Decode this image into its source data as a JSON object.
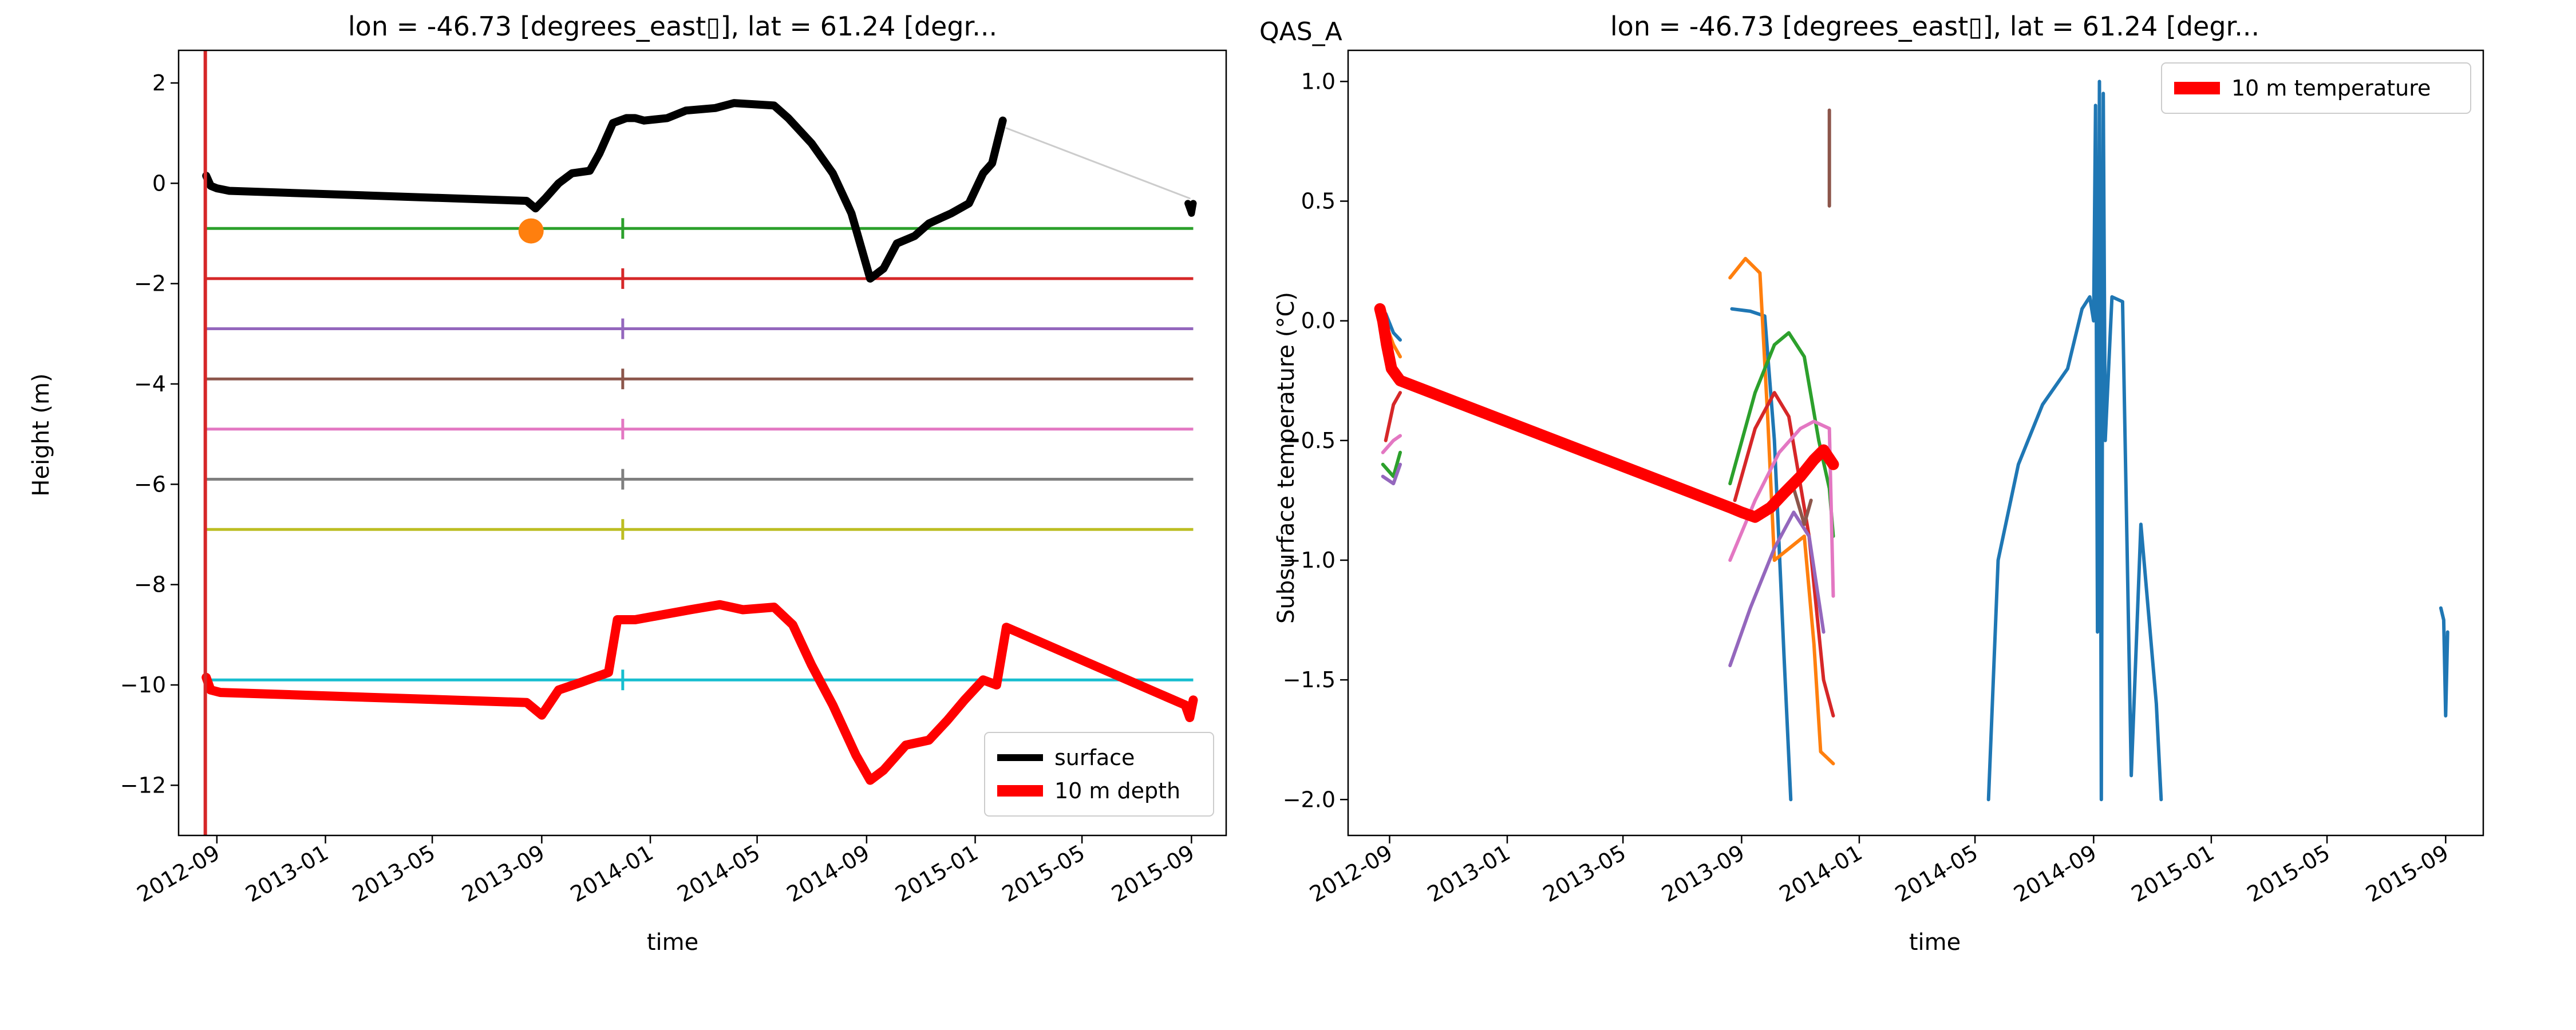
{
  "figure_title": "QAS_A",
  "colors": {
    "blue": "#1f77b4",
    "orange": "#ff7f0e",
    "green": "#2ca02c",
    "red": "#d62728",
    "purple": "#9467bd",
    "brown": "#8c564b",
    "pink": "#e377c2",
    "gray": "#7f7f7f",
    "olive": "#bcbd22",
    "cyan": "#17becf",
    "black": "#000000",
    "thick_red": "#ff0000",
    "light_gray": "#cccccc"
  },
  "chart_data": [
    {
      "type": "line",
      "title": "lon = -46.73 [degrees_east▯], lat = 61.24 [degr...",
      "xlabel": "time",
      "ylabel": "Height (m)",
      "xlim": [
        "2012-07-20",
        "2015-10-10"
      ],
      "ylim": [
        -13.0,
        2.65
      ],
      "xticks": [
        "2012-09",
        "2013-01",
        "2013-05",
        "2013-09",
        "2014-01",
        "2014-05",
        "2014-09",
        "2015-01",
        "2015-05",
        "2015-09"
      ],
      "yticks": [
        2,
        0,
        -2,
        -4,
        -6,
        -8,
        -10,
        -12
      ],
      "grid": false,
      "legend": {
        "placement": "lower-right",
        "entries": [
          {
            "label": "surface",
            "color": "#000000"
          },
          {
            "label": "10 m depth",
            "color": "#ff0000"
          }
        ]
      },
      "vline": {
        "x": "2012-08-19",
        "color": "#d62728"
      },
      "marker": {
        "x": "2013-08-20",
        "y": -0.95,
        "color": "#ff7f0e"
      },
      "surface_gap_line": [
        [
          "2012-09-01",
          -0.15
        ],
        [
          "2013-08-15",
          -0.35
        ]
      ],
      "surface_gap_line_2": [
        [
          "2015-02-05",
          1.1
        ],
        [
          "2015-08-30",
          -0.3
        ]
      ],
      "surface": [
        [
          "2012-08-20",
          0.15
        ],
        [
          "2012-08-25",
          -0.05
        ],
        [
          "2012-09-01",
          -0.1
        ],
        [
          "2012-09-15",
          -0.15
        ],
        [
          "2013-08-15",
          -0.35
        ],
        [
          "2013-08-25",
          -0.5
        ],
        [
          "2013-09-05",
          -0.3
        ],
        [
          "2013-09-20",
          0.0
        ],
        [
          "2013-10-05",
          0.2
        ],
        [
          "2013-10-25",
          0.25
        ],
        [
          "2013-11-05",
          0.6
        ],
        [
          "2013-11-20",
          1.2
        ],
        [
          "2013-12-05",
          1.3
        ],
        [
          "2013-12-15",
          1.3
        ],
        [
          "2013-12-25",
          1.25
        ],
        [
          "2014-01-20",
          1.3
        ],
        [
          "2014-02-10",
          1.45
        ],
        [
          "2014-03-15",
          1.5
        ],
        [
          "2014-04-05",
          1.6
        ],
        [
          "2014-05-20",
          1.55
        ],
        [
          "2014-06-05",
          1.3
        ],
        [
          "2014-07-01",
          0.8
        ],
        [
          "2014-07-25",
          0.2
        ],
        [
          "2014-08-15",
          -0.6
        ],
        [
          "2014-09-05",
          -1.9
        ],
        [
          "2014-09-20",
          -1.7
        ],
        [
          "2014-10-05",
          -1.2
        ],
        [
          "2014-10-25",
          -1.05
        ],
        [
          "2014-11-10",
          -0.8
        ],
        [
          "2014-12-05",
          -0.6
        ],
        [
          "2014-12-25",
          -0.4
        ],
        [
          "2015-01-10",
          0.2
        ],
        [
          "2015-01-20",
          0.4
        ],
        [
          "2015-02-01",
          1.25
        ]
      ],
      "surface_tail": [
        [
          "2015-08-28",
          -0.4
        ],
        [
          "2015-09-01",
          -0.6
        ],
        [
          "2015-09-03",
          -0.4
        ]
      ],
      "depth_10m": [
        [
          "2012-08-20",
          -9.85
        ],
        [
          "2012-08-25",
          -10.1
        ],
        [
          "2012-09-05",
          -10.15
        ],
        [
          "2013-08-15",
          -10.35
        ],
        [
          "2013-09-01",
          -10.6
        ],
        [
          "2013-09-20",
          -10.1
        ],
        [
          "2013-10-15",
          -9.95
        ],
        [
          "2013-11-15",
          -9.75
        ],
        [
          "2013-11-25",
          -8.7
        ],
        [
          "2013-12-15",
          -8.7
        ],
        [
          "2014-01-15",
          -8.6
        ],
        [
          "2014-02-15",
          -8.5
        ],
        [
          "2014-03-20",
          -8.4
        ],
        [
          "2014-04-15",
          -8.5
        ],
        [
          "2014-05-20",
          -8.45
        ],
        [
          "2014-06-10",
          -8.8
        ],
        [
          "2014-07-01",
          -9.6
        ],
        [
          "2014-07-25",
          -10.4
        ],
        [
          "2014-08-20",
          -11.4
        ],
        [
          "2014-09-05",
          -11.9
        ],
        [
          "2014-09-20",
          -11.7
        ],
        [
          "2014-10-15",
          -11.2
        ],
        [
          "2014-11-10",
          -11.1
        ],
        [
          "2014-12-01",
          -10.7
        ],
        [
          "2014-12-20",
          -10.3
        ],
        [
          "2015-01-10",
          -9.9
        ],
        [
          "2015-01-25",
          -10.0
        ],
        [
          "2015-02-05",
          -8.85
        ],
        [
          "2015-08-25",
          -10.4
        ],
        [
          "2015-08-30",
          -10.65
        ],
        [
          "2015-09-03",
          -10.3
        ]
      ],
      "depth_lines": [
        {
          "y": -0.9,
          "color": "#2ca02c"
        },
        {
          "y": -1.9,
          "color": "#d62728"
        },
        {
          "y": -2.9,
          "color": "#9467bd"
        },
        {
          "y": -3.9,
          "color": "#8c564b"
        },
        {
          "y": -4.9,
          "color": "#e377c2"
        },
        {
          "y": -5.9,
          "color": "#7f7f7f"
        },
        {
          "y": -6.9,
          "color": "#bcbd22"
        },
        {
          "y": -9.9,
          "color": "#17becf"
        }
      ],
      "depth_lines_x": [
        "2012-08-20",
        "2015-09-03"
      ],
      "depth_ticks_x": "2013-12-01"
    },
    {
      "type": "line",
      "title": "lon = -46.73 [degrees_east▯], lat = 61.24 [degr...",
      "xlabel": "time",
      "ylabel": "Subsurface temperature (°C)",
      "xlim": [
        "2012-07-20",
        "2015-10-10"
      ],
      "ylim": [
        -2.15,
        1.13
      ],
      "xticks": [
        "2012-09",
        "2013-01",
        "2013-05",
        "2013-09",
        "2014-01",
        "2014-05",
        "2014-09",
        "2015-01",
        "2015-05",
        "2015-09"
      ],
      "yticks": [
        1.0,
        0.5,
        0.0,
        -0.5,
        -1.0,
        -1.5,
        -2.0
      ],
      "grid": false,
      "legend": {
        "placement": "upper-right",
        "entries": [
          {
            "label": "10 m temperature",
            "color": "#ff0000"
          }
        ]
      },
      "series": [
        {
          "color": "#1f77b4",
          "points": [
            [
              "2012-08-28",
              0.03
            ],
            [
              "2012-09-05",
              -0.05
            ],
            [
              "2012-09-12",
              -0.08
            ]
          ]
        },
        {
          "color": "#1f77b4",
          "points": [
            [
              "2013-08-22",
              0.05
            ],
            [
              "2013-09-10",
              0.04
            ],
            [
              "2013-09-25",
              0.02
            ],
            [
              "2013-10-05",
              -0.5
            ],
            [
              "2013-10-15",
              -1.4
            ],
            [
              "2013-10-22",
              -2.0
            ]
          ]
        },
        {
          "color": "#1f77b4",
          "points": [
            [
              "2014-05-15",
              -2.0
            ],
            [
              "2014-05-25",
              -1.0
            ],
            [
              "2014-06-15",
              -0.6
            ],
            [
              "2014-07-10",
              -0.35
            ],
            [
              "2014-08-05",
              -0.2
            ],
            [
              "2014-08-20",
              0.05
            ],
            [
              "2014-08-28",
              0.1
            ],
            [
              "2014-09-01",
              0.0
            ],
            [
              "2014-09-03",
              0.9
            ],
            [
              "2014-09-05",
              -1.3
            ],
            [
              "2014-09-07",
              1.0
            ],
            [
              "2014-09-09",
              -2.0
            ],
            [
              "2014-09-11",
              0.95
            ],
            [
              "2014-09-13",
              -0.5
            ],
            [
              "2014-09-20",
              0.1
            ],
            [
              "2014-10-01",
              0.08
            ],
            [
              "2014-10-10",
              -1.9
            ],
            [
              "2014-10-20",
              -0.85
            ],
            [
              "2014-11-05",
              -1.6
            ],
            [
              "2014-11-10",
              -2.0
            ]
          ]
        },
        {
          "color": "#1f77b4",
          "points": [
            [
              "2015-08-27",
              -1.2
            ],
            [
              "2015-08-30",
              -1.25
            ],
            [
              "2015-09-01",
              -1.65
            ],
            [
              "2015-09-03",
              -1.3
            ]
          ]
        },
        {
          "color": "#ff7f0e",
          "points": [
            [
              "2012-08-25",
              0.02
            ],
            [
              "2012-09-05",
              -0.1
            ],
            [
              "2012-09-12",
              -0.15
            ]
          ]
        },
        {
          "color": "#ff7f0e",
          "points": [
            [
              "2013-08-20",
              0.18
            ],
            [
              "2013-09-05",
              0.26
            ],
            [
              "2013-09-20",
              0.2
            ],
            [
              "2013-09-28",
              -0.4
            ],
            [
              "2013-10-05",
              -1.0
            ],
            [
              "2013-11-05",
              -0.9
            ],
            [
              "2013-11-15",
              -1.35
            ],
            [
              "2013-11-22",
              -1.8
            ],
            [
              "2013-12-05",
              -1.85
            ]
          ]
        },
        {
          "color": "#2ca02c",
          "points": [
            [
              "2012-08-25",
              -0.6
            ],
            [
              "2012-09-05",
              -0.65
            ],
            [
              "2012-09-12",
              -0.55
            ]
          ]
        },
        {
          "color": "#2ca02c",
          "points": [
            [
              "2013-08-20",
              -0.68
            ],
            [
              "2013-09-15",
              -0.3
            ],
            [
              "2013-10-05",
              -0.1
            ],
            [
              "2013-10-20",
              -0.05
            ],
            [
              "2013-11-05",
              -0.15
            ],
            [
              "2013-11-20",
              -0.5
            ],
            [
              "2013-12-01",
              -0.7
            ],
            [
              "2013-12-05",
              -0.9
            ]
          ]
        },
        {
          "color": "#d62728",
          "points": [
            [
              "2012-08-28",
              -0.5
            ],
            [
              "2012-09-05",
              -0.35
            ],
            [
              "2012-09-12",
              -0.3
            ]
          ]
        },
        {
          "color": "#d62728",
          "points": [
            [
              "2013-08-25",
              -0.75
            ],
            [
              "2013-09-15",
              -0.45
            ],
            [
              "2013-10-05",
              -0.3
            ],
            [
              "2013-10-20",
              -0.4
            ],
            [
              "2013-11-10",
              -0.9
            ],
            [
              "2013-11-25",
              -1.5
            ],
            [
              "2013-12-05",
              -1.65
            ]
          ]
        },
        {
          "color": "#9467bd",
          "points": [
            [
              "2012-08-25",
              -0.65
            ],
            [
              "2012-09-05",
              -0.68
            ],
            [
              "2012-09-12",
              -0.6
            ]
          ]
        },
        {
          "color": "#9467bd",
          "points": [
            [
              "2013-08-20",
              -1.44
            ],
            [
              "2013-09-10",
              -1.2
            ],
            [
              "2013-10-05",
              -0.95
            ],
            [
              "2013-10-25",
              -0.8
            ],
            [
              "2013-11-10",
              -0.9
            ],
            [
              "2013-11-25",
              -1.3
            ]
          ]
        },
        {
          "color": "#8c564b",
          "points": [
            [
              "2013-12-01",
              0.88
            ],
            [
              "2013-12-01",
              0.48
            ]
          ]
        },
        {
          "color": "#8c564b",
          "points": [
            [
              "2013-10-25",
              -0.7
            ],
            [
              "2013-11-05",
              -0.85
            ],
            [
              "2013-11-12",
              -0.75
            ]
          ]
        },
        {
          "color": "#e377c2",
          "points": [
            [
              "2012-08-25",
              -0.55
            ],
            [
              "2012-09-05",
              -0.5
            ],
            [
              "2012-09-12",
              -0.48
            ]
          ]
        },
        {
          "color": "#e377c2",
          "points": [
            [
              "2013-08-20",
              -1.0
            ],
            [
              "2013-09-15",
              -0.75
            ],
            [
              "2013-10-10",
              -0.55
            ],
            [
              "2013-11-01",
              -0.45
            ],
            [
              "2013-11-15",
              -0.42
            ],
            [
              "2013-12-01",
              -0.45
            ],
            [
              "2013-12-05",
              -1.15
            ]
          ]
        }
      ],
      "temp_10m": [
        [
          "2012-08-22",
          0.05
        ],
        [
          "2012-08-25",
          0.0
        ],
        [
          "2012-08-29",
          -0.1
        ],
        [
          "2012-09-03",
          -0.2
        ],
        [
          "2012-09-12",
          -0.25
        ],
        [
          "2013-08-20",
          -0.78
        ],
        [
          "2013-09-01",
          -0.8
        ],
        [
          "2013-09-15",
          -0.82
        ],
        [
          "2013-10-01",
          -0.78
        ],
        [
          "2013-10-15",
          -0.72
        ],
        [
          "2013-11-01",
          -0.65
        ],
        [
          "2013-11-15",
          -0.58
        ],
        [
          "2013-11-25",
          -0.54
        ],
        [
          "2013-12-05",
          -0.6
        ]
      ]
    }
  ]
}
